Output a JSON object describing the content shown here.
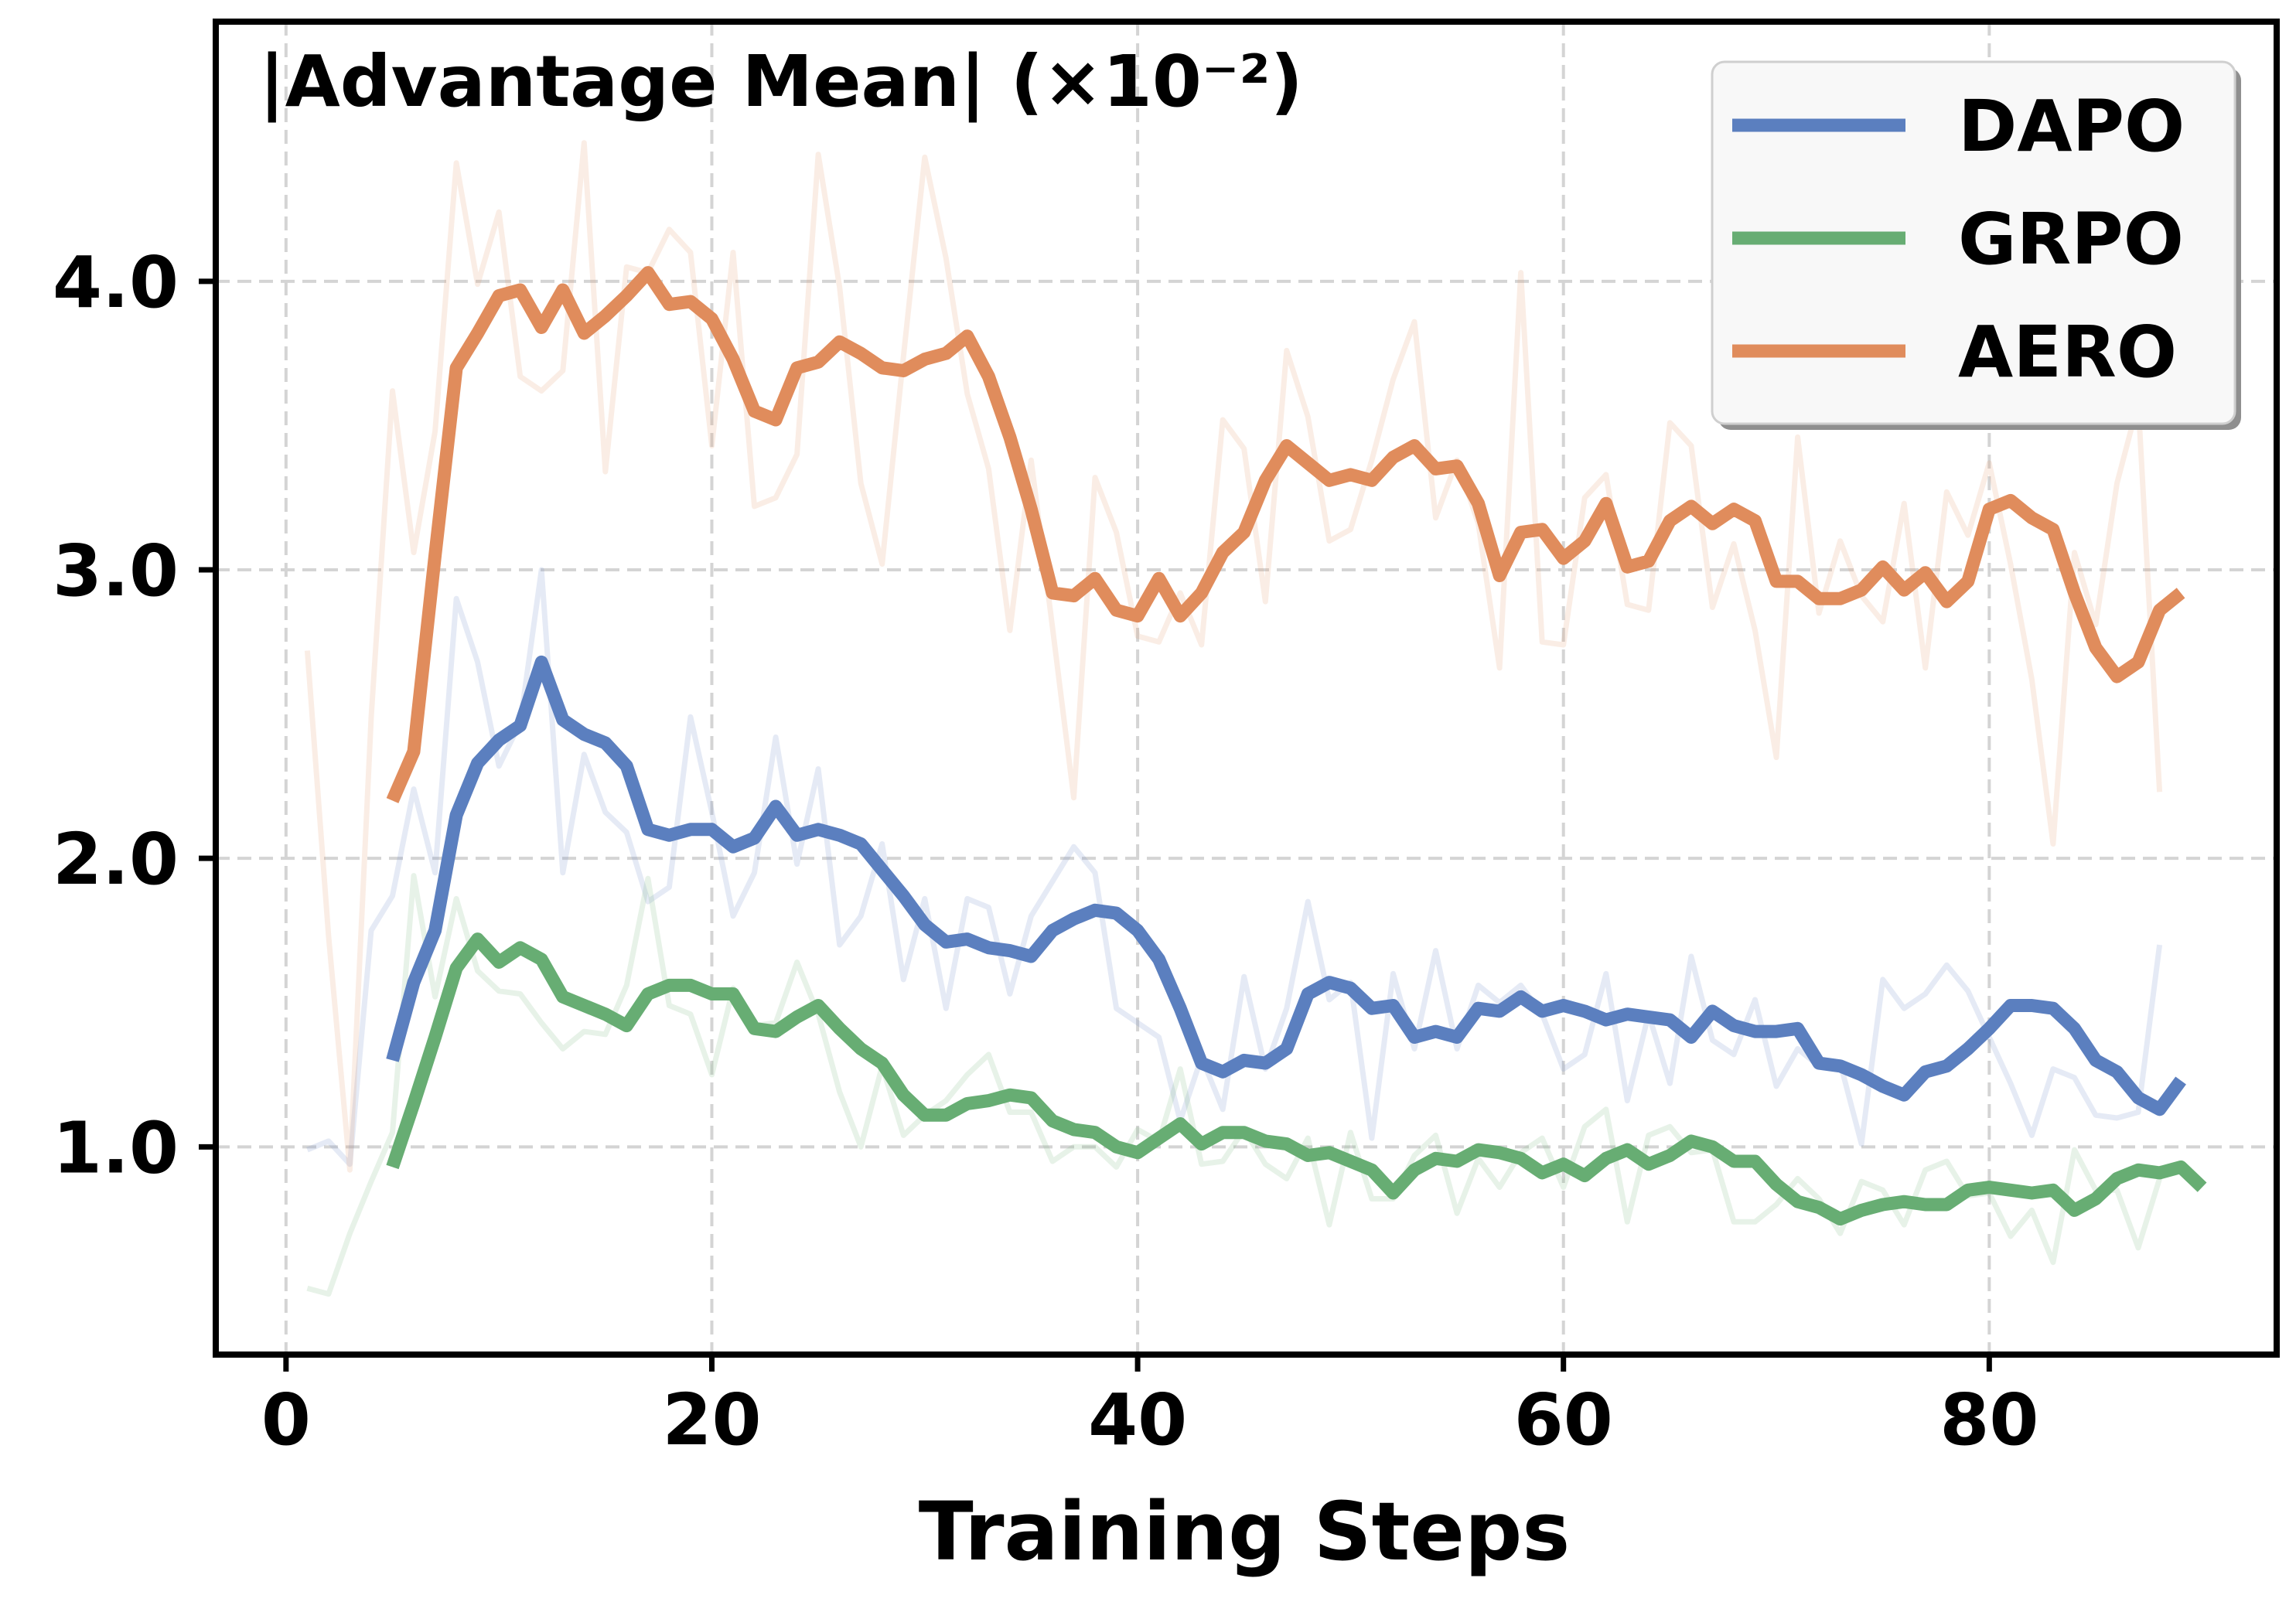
{
  "chart_data": {
    "type": "line",
    "title": "|Advantage Mean| (×10⁻²)",
    "xlabel": "Training Steps",
    "ylabel": "",
    "xlim": [
      -3.3,
      93.5
    ],
    "ylim": [
      0.28,
      4.9
    ],
    "xticks": [
      0,
      20,
      40,
      60,
      80
    ],
    "xtick_labels": [
      "0",
      "20",
      "40",
      "60",
      "80"
    ],
    "yticks": [
      1.0,
      2.0,
      3.0,
      4.0
    ],
    "ytick_labels": [
      "1.0",
      "2.0",
      "3.0",
      "4.0"
    ],
    "grid": true,
    "legend_position": "top-right",
    "smoothed_x_start": 5,
    "raw_x_start": 1,
    "series": [
      {
        "name": "DAPO",
        "color": "#5b7fbf",
        "smoothed": [
          1.3,
          1.57,
          1.75,
          2.15,
          2.33,
          2.41,
          2.46,
          2.68,
          2.48,
          2.43,
          2.4,
          2.32,
          2.1,
          2.08,
          2.1,
          2.1,
          2.04,
          2.07,
          2.18,
          2.08,
          2.1,
          2.08,
          2.05,
          1.96,
          1.87,
          1.77,
          1.71,
          1.72,
          1.69,
          1.68,
          1.66,
          1.75,
          1.79,
          1.82,
          1.81,
          1.75,
          1.65,
          1.48,
          1.29,
          1.26,
          1.3,
          1.29,
          1.34,
          1.53,
          1.57,
          1.55,
          1.48,
          1.49,
          1.38,
          1.4,
          1.38,
          1.48,
          1.47,
          1.52,
          1.47,
          1.49,
          1.47,
          1.44,
          1.46,
          1.45,
          1.44,
          1.38,
          1.47,
          1.42,
          1.4,
          1.4,
          1.41,
          1.29,
          1.28,
          1.25,
          1.21,
          1.18,
          1.26,
          1.28,
          1.34,
          1.41,
          1.49,
          1.49,
          1.48,
          1.41,
          1.3,
          1.26,
          1.17,
          1.13,
          1.23
        ],
        "raw": [
          0.99,
          1.02,
          0.94,
          1.75,
          1.87,
          2.24,
          1.95,
          2.9,
          2.68,
          2.32,
          2.47,
          3.0,
          1.95,
          2.36,
          2.16,
          2.09,
          1.85,
          1.9,
          2.49,
          2.16,
          1.8,
          1.95,
          2.42,
          1.98,
          2.31,
          1.7,
          1.8,
          2.05,
          1.58,
          1.86,
          1.48,
          1.86,
          1.83,
          1.53,
          1.8,
          1.92,
          2.04,
          1.95,
          1.48,
          1.43,
          1.38,
          1.09,
          1.31,
          1.13,
          1.59,
          1.27,
          1.48,
          1.85,
          1.51,
          1.57,
          1.03,
          1.6,
          1.34,
          1.68,
          1.34,
          1.56,
          1.5,
          1.56,
          1.46,
          1.27,
          1.32,
          1.6,
          1.16,
          1.46,
          1.22,
          1.66,
          1.37,
          1.32,
          1.51,
          1.21,
          1.34,
          1.28,
          1.29,
          1.01,
          1.58,
          1.48,
          1.53,
          1.63,
          1.54,
          1.38,
          1.22,
          1.04,
          1.27,
          1.24,
          1.11,
          1.1,
          1.12,
          1.7
        ]
      },
      {
        "name": "GRPO",
        "color": "#67ad73",
        "smoothed": [
          0.93,
          1.15,
          1.38,
          1.62,
          1.72,
          1.64,
          1.69,
          1.65,
          1.52,
          1.49,
          1.46,
          1.42,
          1.53,
          1.56,
          1.56,
          1.53,
          1.53,
          1.41,
          1.4,
          1.45,
          1.49,
          1.41,
          1.34,
          1.29,
          1.18,
          1.11,
          1.11,
          1.15,
          1.16,
          1.18,
          1.17,
          1.09,
          1.06,
          1.05,
          1.0,
          0.98,
          1.03,
          1.08,
          1.01,
          1.05,
          1.05,
          1.02,
          1.01,
          0.97,
          0.98,
          0.95,
          0.92,
          0.84,
          0.92,
          0.96,
          0.95,
          0.99,
          0.98,
          0.96,
          0.91,
          0.94,
          0.9,
          0.96,
          0.99,
          0.94,
          0.97,
          1.02,
          1.0,
          0.95,
          0.95,
          0.87,
          0.81,
          0.79,
          0.75,
          0.78,
          0.8,
          0.81,
          0.8,
          0.8,
          0.85,
          0.86,
          0.85,
          0.84,
          0.85,
          0.78,
          0.82,
          0.89,
          0.92,
          0.91,
          0.93,
          0.86
        ],
        "raw": [
          0.51,
          0.49,
          0.7,
          0.88,
          1.05,
          1.94,
          1.52,
          1.86,
          1.61,
          1.54,
          1.53,
          1.43,
          1.34,
          1.4,
          1.39,
          1.56,
          1.93,
          1.49,
          1.46,
          1.25,
          1.55,
          1.42,
          1.43,
          1.64,
          1.46,
          1.19,
          1.0,
          1.28,
          1.04,
          1.11,
          1.16,
          1.25,
          1.32,
          1.12,
          1.12,
          0.95,
          1.0,
          1.0,
          0.93,
          1.06,
          1.02,
          1.27,
          0.94,
          0.95,
          1.06,
          0.94,
          0.89,
          1.03,
          0.73,
          1.05,
          0.82,
          0.82,
          0.97,
          1.04,
          0.77,
          0.96,
          0.86,
          0.98,
          1.03,
          0.86,
          1.07,
          1.13,
          0.74,
          1.04,
          1.07,
          0.98,
          0.99,
          0.74,
          0.74,
          0.8,
          0.89,
          0.82,
          0.7,
          0.88,
          0.85,
          0.73,
          0.92,
          0.95,
          0.83,
          0.84,
          0.69,
          0.78,
          0.6,
          0.99,
          0.85,
          0.85,
          0.65,
          0.89
        ]
      },
      {
        "name": "AERO",
        "color": "#e08c5c",
        "smoothed": [
          2.2,
          2.37,
          3.05,
          3.7,
          3.82,
          3.95,
          3.97,
          3.84,
          3.97,
          3.82,
          3.88,
          3.95,
          4.03,
          3.92,
          3.93,
          3.87,
          3.73,
          3.55,
          3.52,
          3.7,
          3.72,
          3.79,
          3.75,
          3.7,
          3.69,
          3.73,
          3.75,
          3.81,
          3.67,
          3.46,
          3.21,
          2.92,
          2.91,
          2.97,
          2.86,
          2.84,
          2.97,
          2.84,
          2.92,
          3.06,
          3.13,
          3.31,
          3.43,
          3.37,
          3.31,
          3.33,
          3.31,
          3.39,
          3.43,
          3.35,
          3.36,
          3.23,
          2.98,
          3.13,
          3.14,
          3.04,
          3.1,
          3.23,
          3.01,
          3.03,
          3.17,
          3.22,
          3.16,
          3.21,
          3.17,
          2.96,
          2.96,
          2.9,
          2.9,
          2.93,
          3.01,
          2.93,
          2.99,
          2.89,
          2.96,
          3.21,
          3.24,
          3.18,
          3.14,
          2.92,
          2.73,
          2.63,
          2.68,
          2.86,
          2.92
        ],
        "raw": [
          2.72,
          1.73,
          0.92,
          2.49,
          3.62,
          3.06,
          3.48,
          4.41,
          3.99,
          4.24,
          3.67,
          3.62,
          3.69,
          4.48,
          3.34,
          4.05,
          4.03,
          4.18,
          4.1,
          3.43,
          4.1,
          3.22,
          3.25,
          3.4,
          4.44,
          3.98,
          3.3,
          3.02,
          3.74,
          4.43,
          4.08,
          3.61,
          3.35,
          2.79,
          3.38,
          2.8,
          2.21,
          3.32,
          3.13,
          2.77,
          2.75,
          2.92,
          2.74,
          3.52,
          3.42,
          2.89,
          3.76,
          3.53,
          3.1,
          3.14,
          3.38,
          3.66,
          3.86,
          3.18,
          3.38,
          3.16,
          2.66,
          4.03,
          2.75,
          2.74,
          3.25,
          3.33,
          2.88,
          2.86,
          3.51,
          3.43,
          2.87,
          3.09,
          2.79,
          2.35,
          3.46,
          2.85,
          3.1,
          2.91,
          2.82,
          3.23,
          2.66,
          3.27,
          3.12,
          3.37,
          3.02,
          2.62,
          2.05,
          3.06,
          2.81,
          3.3,
          3.58,
          2.23
        ]
      }
    ]
  }
}
